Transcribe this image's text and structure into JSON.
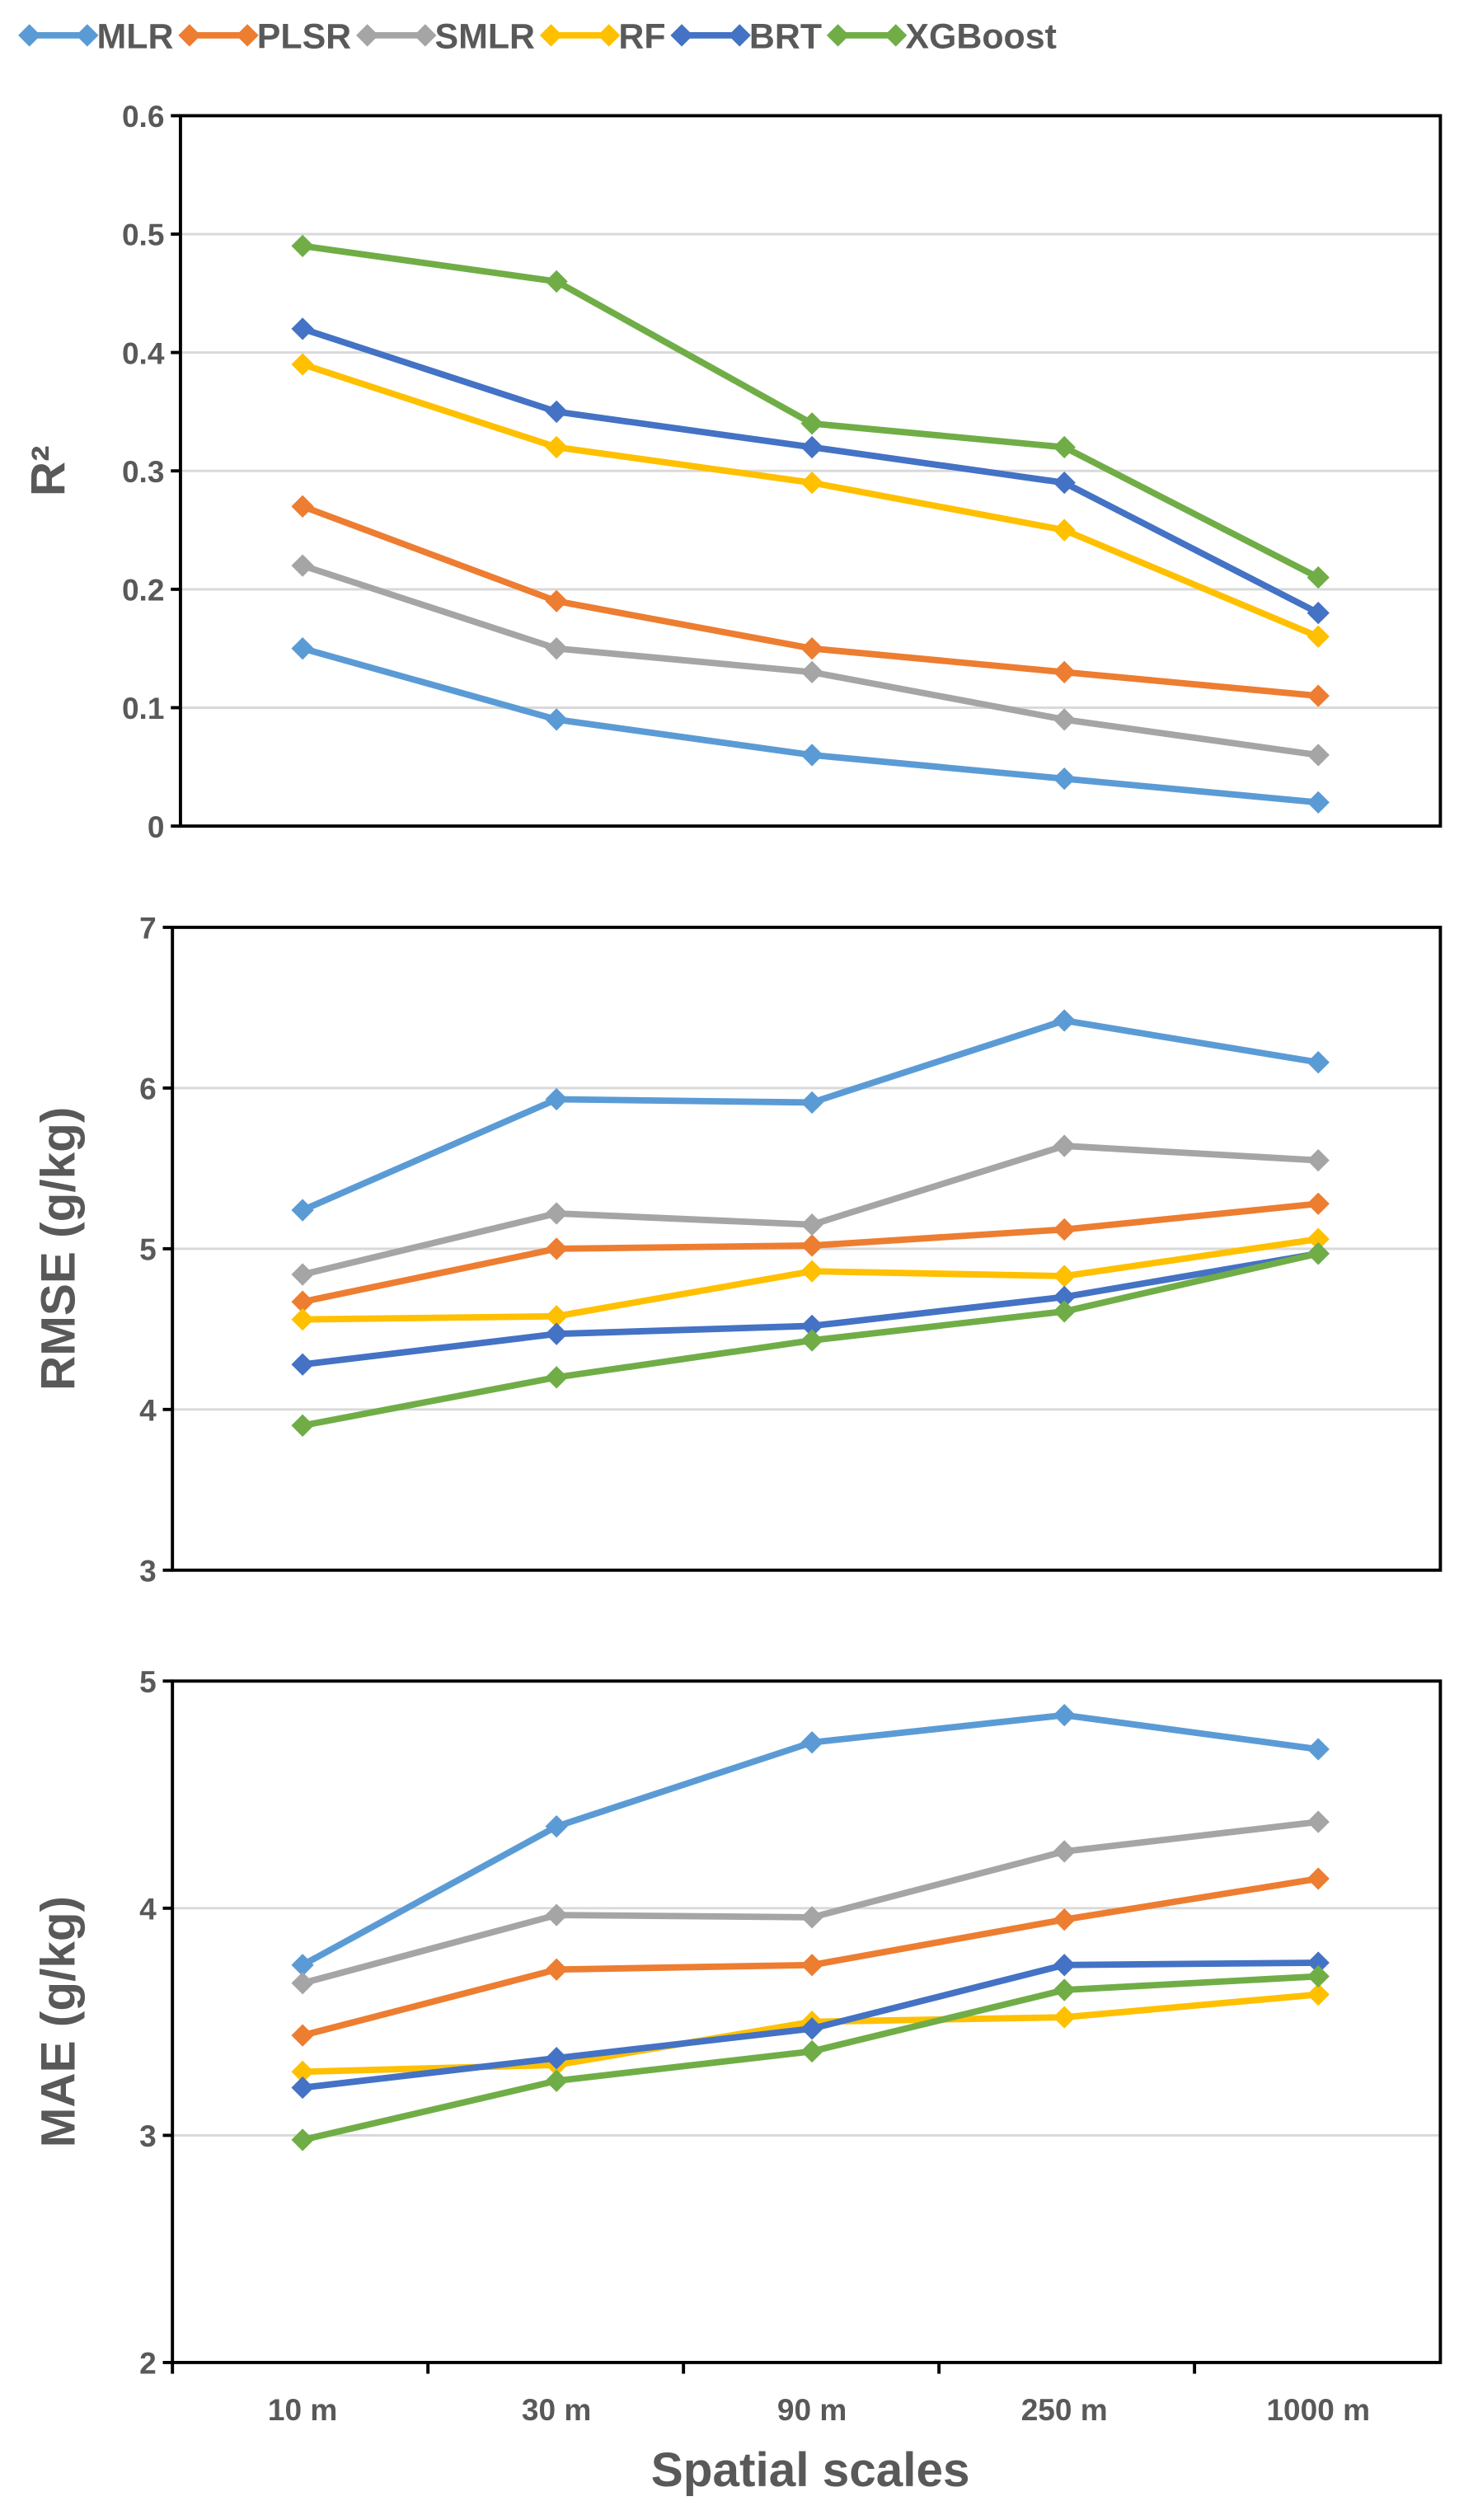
{
  "chart_data": [
    {
      "type": "line",
      "ylabel": "R²",
      "ylim": [
        0,
        0.6
      ],
      "yticks": [
        "0",
        "0.1",
        "0.2",
        "0.3",
        "0.4",
        "0.5",
        "0.6"
      ],
      "categories": [
        "10 m",
        "30 m",
        "90 m",
        "250 m",
        "1000 m"
      ],
      "series": [
        {
          "name": "MLR",
          "color": "#5B9BD5",
          "values": [
            0.15,
            0.09,
            0.06,
            0.04,
            0.02
          ]
        },
        {
          "name": "PLSR",
          "color": "#ED7D31",
          "values": [
            0.27,
            0.19,
            0.15,
            0.13,
            0.11
          ]
        },
        {
          "name": "SMLR",
          "color": "#A5A5A5",
          "values": [
            0.22,
            0.15,
            0.13,
            0.09,
            0.06
          ]
        },
        {
          "name": "RF",
          "color": "#FFC000",
          "values": [
            0.39,
            0.32,
            0.29,
            0.25,
            0.16
          ]
        },
        {
          "name": "BRT",
          "color": "#4472C4",
          "values": [
            0.42,
            0.35,
            0.32,
            0.29,
            0.18
          ]
        },
        {
          "name": "XGBoost",
          "color": "#70AD47",
          "values": [
            0.49,
            0.46,
            0.34,
            0.32,
            0.21
          ]
        }
      ]
    },
    {
      "type": "line",
      "ylabel": "RMSE (g/kg)",
      "ylim": [
        3,
        7
      ],
      "yticks": [
        "3",
        "4",
        "5",
        "6",
        "7"
      ],
      "categories": [
        "10 m",
        "30 m",
        "90 m",
        "250 m",
        "1000 m"
      ],
      "series": [
        {
          "name": "MLR",
          "color": "#5B9BD5",
          "values": [
            5.24,
            5.93,
            5.91,
            6.42,
            6.16
          ]
        },
        {
          "name": "PLSR",
          "color": "#ED7D31",
          "values": [
            4.67,
            5.0,
            5.02,
            5.12,
            5.28
          ]
        },
        {
          "name": "SMLR",
          "color": "#A5A5A5",
          "values": [
            4.84,
            5.22,
            5.15,
            5.64,
            5.55
          ]
        },
        {
          "name": "RF",
          "color": "#FFC000",
          "values": [
            4.56,
            4.58,
            4.86,
            4.83,
            5.06
          ]
        },
        {
          "name": "BRT",
          "color": "#4472C4",
          "values": [
            4.28,
            4.47,
            4.52,
            4.7,
            4.97
          ]
        },
        {
          "name": "XGBoost",
          "color": "#70AD47",
          "values": [
            3.9,
            4.2,
            4.43,
            4.61,
            4.97
          ]
        }
      ]
    },
    {
      "type": "line",
      "ylabel": "MAE (g/kg)",
      "xlabel": "Spatial scales",
      "ylim": [
        2,
        5
      ],
      "yticks": [
        "2",
        "3",
        "4",
        "5"
      ],
      "categories": [
        "10 m",
        "30 m",
        "90 m",
        "250 m",
        "1000 m"
      ],
      "series": [
        {
          "name": "MLR",
          "color": "#5B9BD5",
          "values": [
            3.75,
            4.36,
            4.73,
            4.85,
            4.7
          ]
        },
        {
          "name": "PLSR",
          "color": "#ED7D31",
          "values": [
            3.44,
            3.73,
            3.75,
            3.95,
            4.13
          ]
        },
        {
          "name": "SMLR",
          "color": "#A5A5A5",
          "values": [
            3.67,
            3.97,
            3.96,
            4.25,
            4.38
          ]
        },
        {
          "name": "RF",
          "color": "#FFC000",
          "values": [
            3.28,
            3.31,
            3.5,
            3.52,
            3.62
          ]
        },
        {
          "name": "BRT",
          "color": "#4472C4",
          "values": [
            3.21,
            3.34,
            3.47,
            3.75,
            3.76
          ]
        },
        {
          "name": "XGBoost",
          "color": "#70AD47",
          "values": [
            2.98,
            3.24,
            3.37,
            3.64,
            3.7
          ]
        }
      ]
    }
  ]
}
